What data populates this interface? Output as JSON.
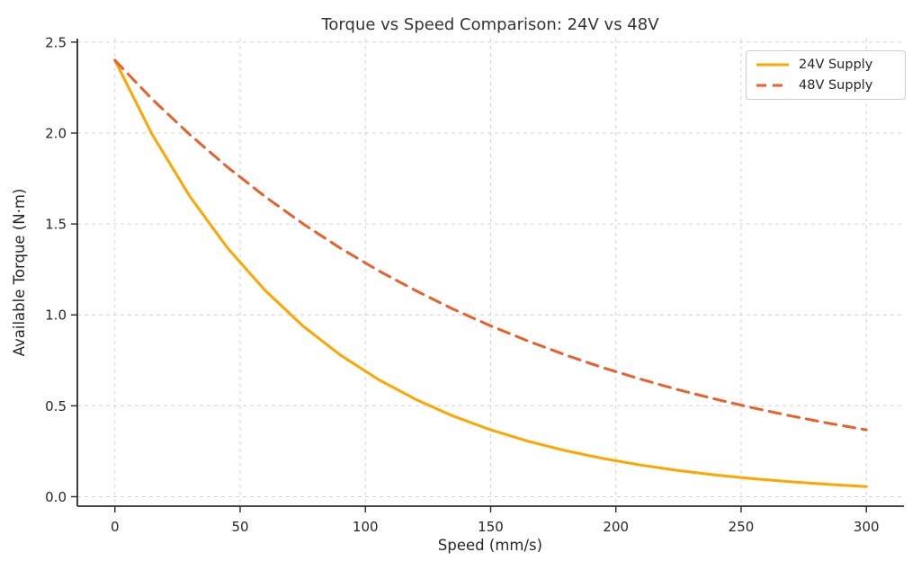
{
  "chart_data": {
    "type": "line",
    "title": "Torque vs Speed Comparison: 24V vs 48V",
    "xlabel": "Speed (mm/s)",
    "ylabel": "Available Torque (N·m)",
    "x_ticks": [
      0,
      50,
      100,
      150,
      200,
      250,
      300
    ],
    "y_ticks": [
      "0.0",
      "0.5",
      "1.0",
      "1.5",
      "2.0",
      "2.5"
    ],
    "y_tick_values": [
      0.0,
      0.5,
      1.0,
      1.5,
      2.0,
      2.5
    ],
    "xlim": [
      -15,
      315
    ],
    "ylim": [
      -0.052,
      2.519
    ],
    "grid": true,
    "legend_position": "upper right",
    "x": [
      0,
      15,
      30,
      45,
      60,
      75,
      90,
      105,
      120,
      135,
      150,
      165,
      180,
      195,
      210,
      225,
      240,
      255,
      270,
      285,
      300
    ],
    "series": [
      {
        "name": "24V Supply",
        "color": "#FFA500",
        "style": "solid",
        "values": [
          2.4,
          1.99,
          1.65,
          1.367,
          1.134,
          0.94,
          0.779,
          0.646,
          0.536,
          0.444,
          0.368,
          0.305,
          0.253,
          0.21,
          0.174,
          0.144,
          0.119,
          0.099,
          0.082,
          0.068,
          0.056
        ]
      },
      {
        "name": "48V Supply",
        "color": "#E8612C",
        "style": "dashed",
        "values": [
          2.4,
          2.185,
          1.99,
          1.812,
          1.65,
          1.502,
          1.367,
          1.245,
          1.134,
          1.032,
          0.94,
          0.856,
          0.779,
          0.709,
          0.646,
          0.588,
          0.536,
          0.488,
          0.444,
          0.404,
          0.368
        ]
      }
    ],
    "colors": {
      "grid": "#cccccc",
      "spine": "#2b2b2b",
      "tick": "#2b2b2b",
      "text": "#262626",
      "title": "#333333",
      "background": "#ffffff"
    }
  }
}
